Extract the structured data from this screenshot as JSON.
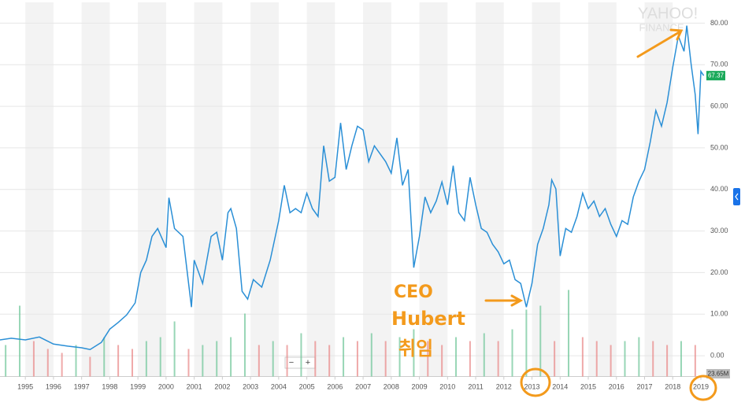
{
  "chart_data": {
    "type": "line",
    "watermark": [
      "YAHOO!",
      "FINANCE"
    ],
    "x": [
      1994.1,
      1994.5,
      1995,
      1995.5,
      1996,
      1996.5,
      1997,
      1997.3,
      1997.7,
      1998,
      1998.3,
      1998.6,
      1998.9,
      1999.1,
      1999.3,
      1999.5,
      1999.7,
      2000,
      2000.1,
      2000.3,
      2000.6,
      2000.9,
      2001,
      2001.3,
      2001.6,
      2001.8,
      2002,
      2002.2,
      2002.3,
      2002.5,
      2002.7,
      2002.9,
      2003.1,
      2003.4,
      2003.7,
      2004,
      2004.2,
      2004.4,
      2004.6,
      2004.8,
      2005,
      2005.2,
      2005.4,
      2005.6,
      2005.8,
      2006,
      2006.2,
      2006.4,
      2006.6,
      2006.8,
      2007,
      2007.2,
      2007.4,
      2007.6,
      2007.8,
      2008,
      2008.2,
      2008.4,
      2008.6,
      2008.8,
      2009,
      2009.2,
      2009.4,
      2009.6,
      2009.8,
      2010,
      2010.2,
      2010.4,
      2010.6,
      2010.8,
      2011,
      2011.2,
      2011.4,
      2011.6,
      2011.8,
      2012,
      2012.2,
      2012.4,
      2012.6,
      2012.8,
      2013,
      2013.2,
      2013.4,
      2013.6,
      2013.7,
      2013.85,
      2014,
      2014.2,
      2014.4,
      2014.6,
      2014.8,
      2015,
      2015.2,
      2015.4,
      2015.6,
      2015.8,
      2016,
      2016.2,
      2016.4,
      2016.6,
      2016.8,
      2017,
      2017.2,
      2017.4,
      2017.6,
      2017.8,
      2018,
      2018.2,
      2018.4,
      2018.5,
      2018.65,
      2018.8,
      2018.9,
      2019.0,
      2019.1
    ],
    "values": [
      3.8,
      4.2,
      3.8,
      4.5,
      2.8,
      2.3,
      1.9,
      1.5,
      3.2,
      6.4,
      8,
      9.8,
      12.7,
      20,
      23,
      28.7,
      30.6,
      26,
      38,
      30.6,
      28.7,
      11.7,
      23,
      17.4,
      28.7,
      29.7,
      23,
      34.4,
      35.4,
      30.6,
      15.5,
      13.6,
      18.3,
      16.5,
      23,
      32.5,
      41,
      34.4,
      35.4,
      34.4,
      39.1,
      35.4,
      33.5,
      50.5,
      42,
      42.9,
      56,
      44.8,
      50.5,
      55.2,
      54.3,
      46.7,
      50.5,
      48.6,
      46.7,
      43.9,
      52.4,
      41,
      44.8,
      21.2,
      28.7,
      38.2,
      34.4,
      37.2,
      41.8,
      36.3,
      45.7,
      34.4,
      32.5,
      42.9,
      36.3,
      30.6,
      29.7,
      26.8,
      25,
      22.1,
      23,
      18.3,
      17.4,
      11.7,
      17.4,
      26.8,
      30.6,
      36.3,
      42.3,
      40.1,
      24,
      30.6,
      29.7,
      33.5,
      39.1,
      35.4,
      37.2,
      33.5,
      35.4,
      31.6,
      28.7,
      32.5,
      31.6,
      38.2,
      42,
      44.8,
      51.4,
      59,
      55.2,
      60.9,
      69.4,
      76.9,
      73.2,
      79.4,
      70.3,
      62.8,
      53.3,
      68.4,
      67.37
    ],
    "color": "#2a8fd6",
    "last_color": "#1aa95a",
    "xlim": [
      1994.1,
      2019.14
    ],
    "xticks": [
      1995,
      1996,
      1997,
      1998,
      1999,
      2000,
      2001,
      2002,
      2003,
      2004,
      2005,
      2006,
      2007,
      2008,
      2009,
      2010,
      2011,
      2012,
      2013,
      2014,
      2015,
      2016,
      2017,
      2018,
      2019
    ],
    "ylim": [
      -5,
      85
    ],
    "yticks": [
      {
        "value": 0,
        "label": "0.00"
      },
      {
        "value": 10,
        "label": "10.00"
      },
      {
        "value": 20,
        "label": "20.00"
      },
      {
        "value": 30,
        "label": "30.00"
      },
      {
        "value": 40,
        "label": "40.00"
      },
      {
        "value": 50,
        "label": "50.00"
      },
      {
        "value": 60,
        "label": "60.00"
      },
      {
        "value": 70,
        "label": "70.00"
      },
      {
        "value": 80,
        "label": "80.00"
      }
    ],
    "grid": true,
    "volume": {
      "x": [
        1994.3,
        1994.8,
        1995.3,
        1995.8,
        1996.3,
        1996.8,
        1997.3,
        1997.8,
        1998.3,
        1998.8,
        1999.3,
        1999.8,
        2000.3,
        2000.8,
        2001.3,
        2001.8,
        2002.3,
        2002.8,
        2003.3,
        2003.8,
        2004.3,
        2004.8,
        2005.3,
        2005.8,
        2006.3,
        2006.8,
        2007.3,
        2007.8,
        2008.3,
        2008.8,
        2009.3,
        2009.8,
        2010.3,
        2010.8,
        2011.3,
        2011.8,
        2012.3,
        2012.8,
        2013.3,
        2013.8,
        2014.3,
        2014.8,
        2015.3,
        2015.8,
        2016.3,
        2016.8,
        2017.3,
        2017.8,
        2018.3,
        2018.8
      ],
      "values": [
        40,
        90,
        45,
        35,
        30,
        40,
        25,
        50,
        40,
        35,
        45,
        50,
        70,
        35,
        40,
        45,
        50,
        80,
        40,
        45,
        40,
        55,
        45,
        40,
        50,
        45,
        55,
        45,
        50,
        60,
        45,
        40,
        50,
        45,
        55,
        45,
        60,
        85,
        90,
        45,
        110,
        50,
        45,
        40,
        45,
        50,
        45,
        40,
        45,
        40
      ],
      "vlim": [
        0,
        100
      ],
      "colors": [
        "#6cc497",
        "#e88585"
      ],
      "label": "23.65M"
    },
    "zoom": [
      "−",
      "+"
    ],
    "annotations": [
      "CEO",
      "Hubert",
      "취임"
    ]
  }
}
